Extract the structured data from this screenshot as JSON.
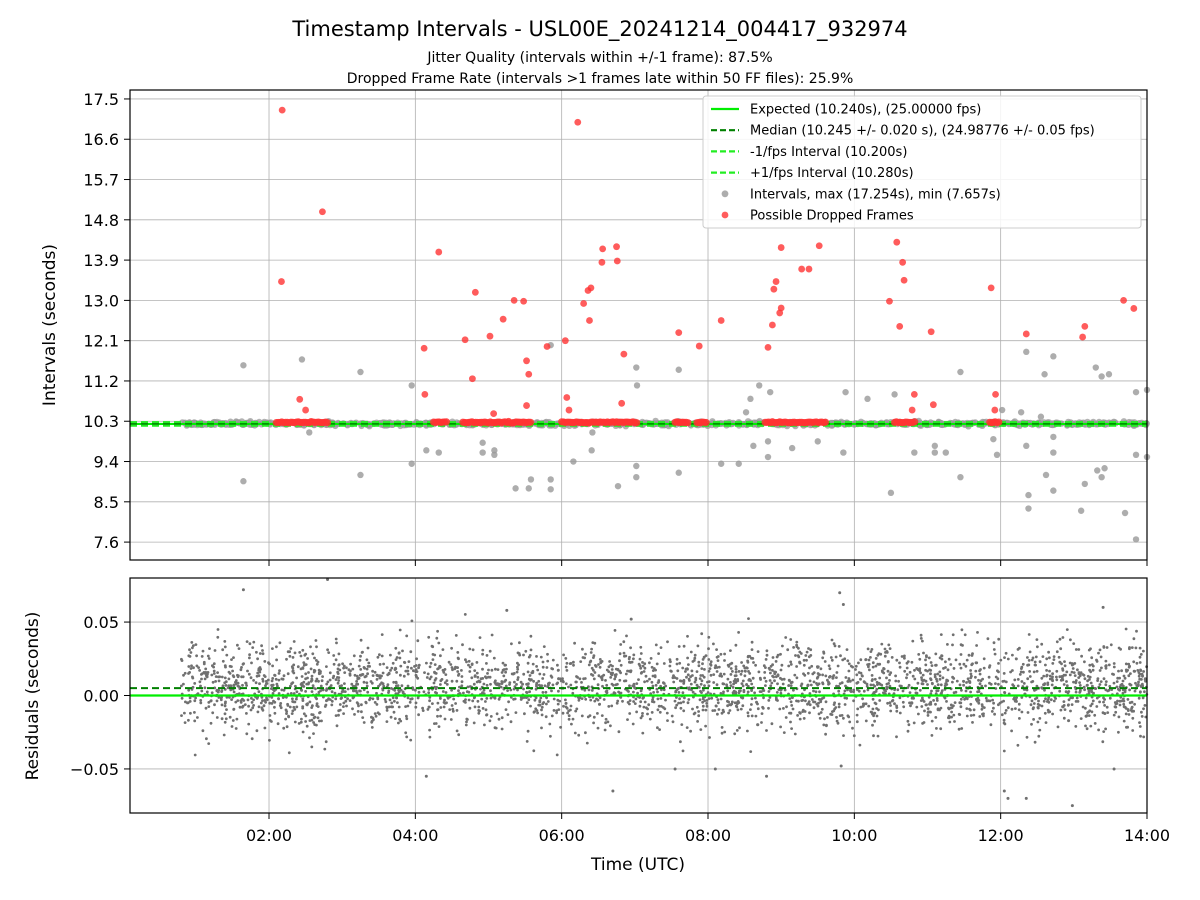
{
  "chart_data": {
    "title": "Timestamp Intervals - USL00E_20241214_004417_932974",
    "subtitle_1": "Jitter Quality (intervals within +/-1 frame): 87.5%",
    "subtitle_2": "Dropped Frame Rate (intervals >1 frames late within 50 FF files): 25.9%",
    "xlabel": "Time (UTC)",
    "x_ticks": [
      "02:00",
      "04:00",
      "06:00",
      "08:00",
      "10:00",
      "12:00",
      "14:00"
    ],
    "x_range_hours": [
      0.1,
      14.0
    ],
    "colors": {
      "expected": "#00ee00",
      "median": "#008000",
      "bounds": "#22ee22",
      "intervals": "#999999",
      "dropped": "#ff3333",
      "residuals": "#707070"
    },
    "panels": [
      {
        "type": "scatter",
        "ylabel": "Intervals (seconds)",
        "ylim": [
          7.2,
          17.7
        ],
        "y_ticks": [
          "7.6",
          "8.5",
          "9.4",
          "10.3",
          "11.2",
          "12.1",
          "13.0",
          "13.9",
          "14.8",
          "15.7",
          "16.6",
          "17.5"
        ],
        "grid": true,
        "legend_position": "top-right",
        "legend": [
          "Expected (10.240s), (25.00000 fps)",
          "Median (10.245 +/- 0.020 s), (24.98776 +/- 0.05 fps)",
          "-1/fps Interval (10.200s)",
          "+1/fps Interval (10.280s)",
          "Intervals, max (17.254s), min (7.657s)",
          "Possible Dropped Frames"
        ],
        "lines": {
          "expected": 10.24,
          "median": 10.245,
          "minus_one_frame": 10.2,
          "plus_one_frame": 10.28
        },
        "dropped_points": [
          [
            2.18,
            17.25
          ],
          [
            2.17,
            13.42
          ],
          [
            2.73,
            14.98
          ],
          [
            2.42,
            10.79
          ],
          [
            2.5,
            10.55
          ],
          [
            4.12,
            11.93
          ],
          [
            4.32,
            14.08
          ],
          [
            4.13,
            10.9
          ],
          [
            4.68,
            12.12
          ],
          [
            4.82,
            13.18
          ],
          [
            4.78,
            11.25
          ],
          [
            5.02,
            12.2
          ],
          [
            5.2,
            12.58
          ],
          [
            5.35,
            13.0
          ],
          [
            5.48,
            12.98
          ],
          [
            5.52,
            11.65
          ],
          [
            5.55,
            11.35
          ],
          [
            5.52,
            10.65
          ],
          [
            5.8,
            11.97
          ],
          [
            6.05,
            12.1
          ],
          [
            6.22,
            16.98
          ],
          [
            6.3,
            12.93
          ],
          [
            6.36,
            13.22
          ],
          [
            6.4,
            13.28
          ],
          [
            6.38,
            12.55
          ],
          [
            6.55,
            13.85
          ],
          [
            6.56,
            14.15
          ],
          [
            6.75,
            14.2
          ],
          [
            6.76,
            13.88
          ],
          [
            6.85,
            11.8
          ],
          [
            6.82,
            10.7
          ],
          [
            7.6,
            12.28
          ],
          [
            7.88,
            11.98
          ],
          [
            8.18,
            12.55
          ],
          [
            8.82,
            11.95
          ],
          [
            8.88,
            12.45
          ],
          [
            8.9,
            13.25
          ],
          [
            8.93,
            13.42
          ],
          [
            8.98,
            12.72
          ],
          [
            9.0,
            12.83
          ],
          [
            9.0,
            14.18
          ],
          [
            9.28,
            13.7
          ],
          [
            9.38,
            13.7
          ],
          [
            9.52,
            14.22
          ],
          [
            10.48,
            12.98
          ],
          [
            10.58,
            14.3
          ],
          [
            10.62,
            12.42
          ],
          [
            10.66,
            13.85
          ],
          [
            10.68,
            13.45
          ],
          [
            10.82,
            10.9
          ],
          [
            10.79,
            10.55
          ],
          [
            11.05,
            12.3
          ],
          [
            11.08,
            10.67
          ],
          [
            11.87,
            13.28
          ],
          [
            11.93,
            10.9
          ],
          [
            11.92,
            10.55
          ],
          [
            12.35,
            12.25
          ],
          [
            13.12,
            12.18
          ],
          [
            13.15,
            12.42
          ],
          [
            13.68,
            13.0
          ],
          [
            13.82,
            12.82
          ],
          [
            6.07,
            10.83
          ],
          [
            6.1,
            10.55
          ],
          [
            5.07,
            10.47
          ]
        ],
        "gray_outliers": [
          [
            1.65,
            11.55
          ],
          [
            1.65,
            8.96
          ],
          [
            2.45,
            11.68
          ],
          [
            2.55,
            10.05
          ],
          [
            3.25,
            11.4
          ],
          [
            3.25,
            9.1
          ],
          [
            3.95,
            11.1
          ],
          [
            3.95,
            9.35
          ],
          [
            4.15,
            9.65
          ],
          [
            4.32,
            9.6
          ],
          [
            4.92,
            9.6
          ],
          [
            4.92,
            9.82
          ],
          [
            5.08,
            9.65
          ],
          [
            5.08,
            9.55
          ],
          [
            5.37,
            8.8
          ],
          [
            5.55,
            8.8
          ],
          [
            5.58,
            9.0
          ],
          [
            5.85,
            9.0
          ],
          [
            5.85,
            8.78
          ],
          [
            5.85,
            12.0
          ],
          [
            6.16,
            9.4
          ],
          [
            6.41,
            9.65
          ],
          [
            6.42,
            10.05
          ],
          [
            6.77,
            8.85
          ],
          [
            7.02,
            11.5
          ],
          [
            7.03,
            11.1
          ],
          [
            7.02,
            9.3
          ],
          [
            7.02,
            9.05
          ],
          [
            7.6,
            9.15
          ],
          [
            7.6,
            11.45
          ],
          [
            8.18,
            9.35
          ],
          [
            8.42,
            9.35
          ],
          [
            8.52,
            10.5
          ],
          [
            8.58,
            10.8
          ],
          [
            8.62,
            9.75
          ],
          [
            8.7,
            11.1
          ],
          [
            8.82,
            9.5
          ],
          [
            8.82,
            9.85
          ],
          [
            8.85,
            10.95
          ],
          [
            9.15,
            9.7
          ],
          [
            9.5,
            9.85
          ],
          [
            9.85,
            9.6
          ],
          [
            9.88,
            10.95
          ],
          [
            10.18,
            10.8
          ],
          [
            10.5,
            8.7
          ],
          [
            10.55,
            10.9
          ],
          [
            10.82,
            9.6
          ],
          [
            10.82,
            10.3
          ],
          [
            11.1,
            9.75
          ],
          [
            11.1,
            9.6
          ],
          [
            11.25,
            9.6
          ],
          [
            11.45,
            11.4
          ],
          [
            11.45,
            9.05
          ],
          [
            11.9,
            9.9
          ],
          [
            11.95,
            9.55
          ],
          [
            12.02,
            10.55
          ],
          [
            12.28,
            10.5
          ],
          [
            12.35,
            11.85
          ],
          [
            12.35,
            9.75
          ],
          [
            12.38,
            8.65
          ],
          [
            12.38,
            8.35
          ],
          [
            12.55,
            10.4
          ],
          [
            12.6,
            11.35
          ],
          [
            12.62,
            9.1
          ],
          [
            12.72,
            11.75
          ],
          [
            12.72,
            9.95
          ],
          [
            12.72,
            9.6
          ],
          [
            12.72,
            8.75
          ],
          [
            13.1,
            8.3
          ],
          [
            13.15,
            8.9
          ],
          [
            13.3,
            11.5
          ],
          [
            13.32,
            9.2
          ],
          [
            13.38,
            11.3
          ],
          [
            13.38,
            9.05
          ],
          [
            13.42,
            9.25
          ],
          [
            13.48,
            11.35
          ],
          [
            13.7,
            8.25
          ],
          [
            13.85,
            7.66
          ],
          [
            13.85,
            10.95
          ],
          [
            13.85,
            9.55
          ],
          [
            14.0,
            11.0
          ],
          [
            14.0,
            9.5
          ]
        ]
      },
      {
        "type": "scatter",
        "ylabel": "Residuals (seconds)",
        "ylim": [
          -0.08,
          0.08
        ],
        "y_ticks": [
          "−0.05",
          "0.00",
          "0.05"
        ],
        "grid": true,
        "lines": {
          "expected": 0.0,
          "median": 0.005
        },
        "residual_points_note": "",
        "residual_extremes": [
          [
            1.65,
            0.072
          ],
          [
            2.8,
            0.079
          ],
          [
            4.15,
            -0.055
          ],
          [
            5.25,
            0.058
          ],
          [
            6.7,
            -0.065
          ],
          [
            6.95,
            0.052
          ],
          [
            7.55,
            -0.05
          ],
          [
            8.1,
            -0.05
          ],
          [
            8.8,
            -0.055
          ],
          [
            9.8,
            0.07
          ],
          [
            9.85,
            0.062
          ],
          [
            9.82,
            -0.048
          ],
          [
            12.05,
            -0.065
          ],
          [
            12.1,
            -0.07
          ],
          [
            12.35,
            -0.07
          ],
          [
            13.4,
            0.06
          ],
          [
            13.55,
            -0.05
          ],
          [
            12.98,
            -0.075
          ]
        ]
      }
    ]
  }
}
